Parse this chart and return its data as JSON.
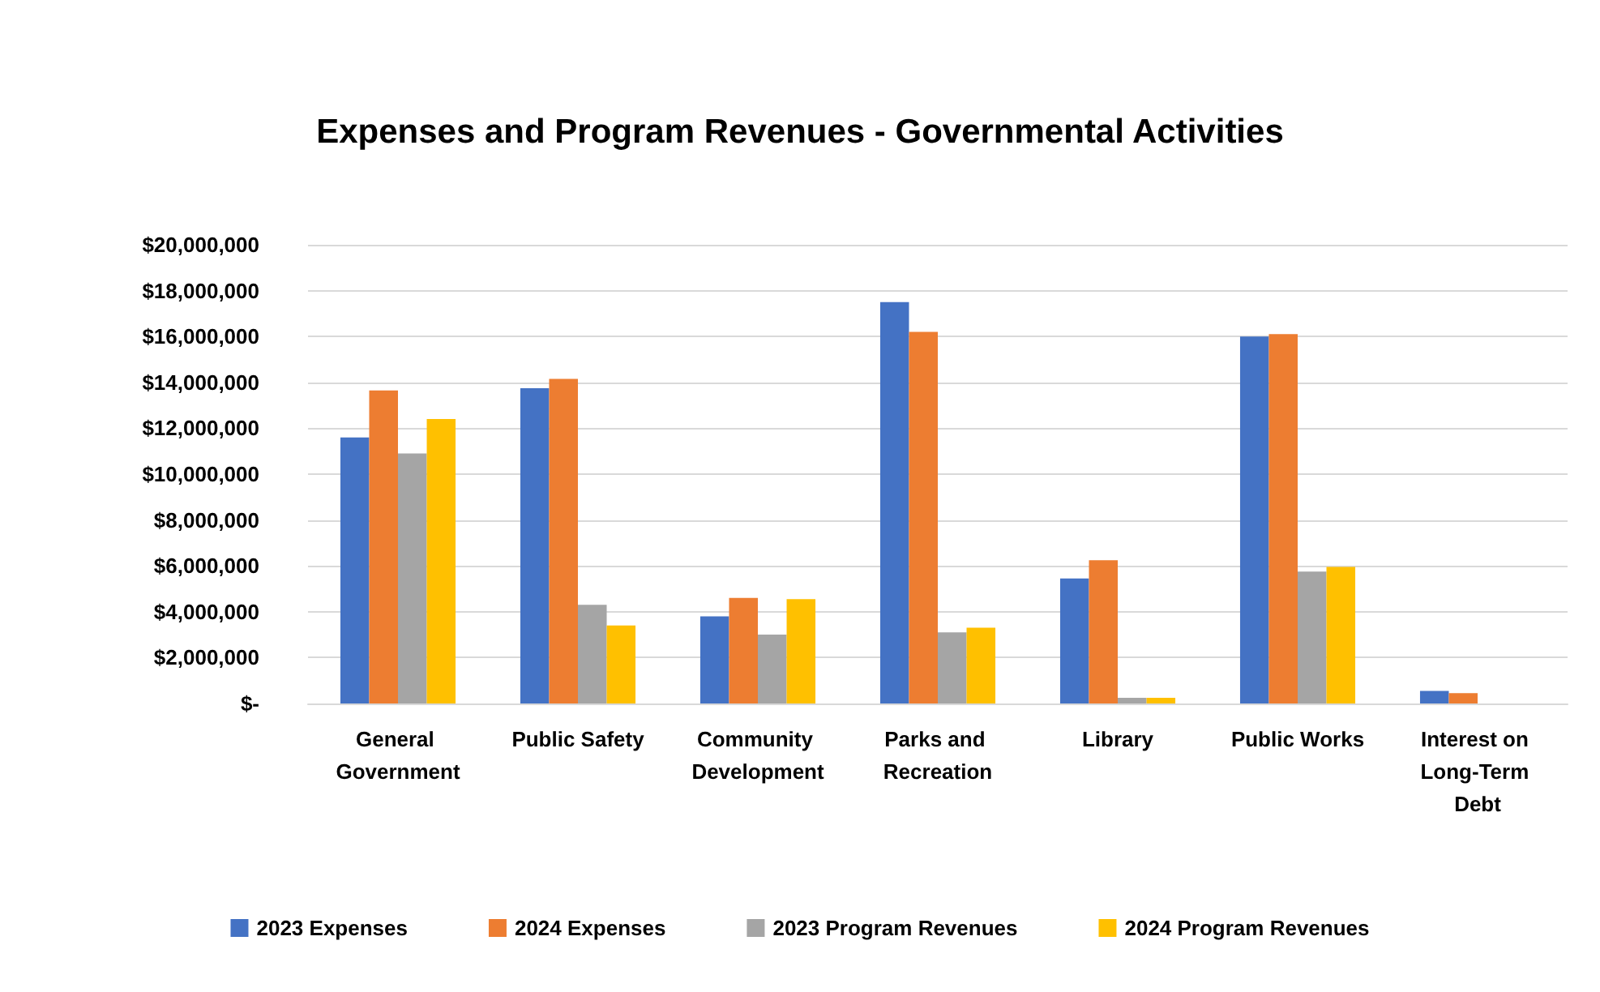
{
  "chart_data": {
    "type": "bar",
    "title": "Expenses and Program Revenues - Governmental Activities",
    "categories": [
      "General Government",
      "Public Safety",
      "Community Development",
      "Parks and Recreation",
      "Library",
      "Public Works",
      "Interest on Long-Term Debt"
    ],
    "series": [
      {
        "name": "2023 Expenses",
        "color": "#4472c4",
        "values": [
          11600000,
          13750000,
          3800000,
          17500000,
          5450000,
          16000000,
          550000
        ]
      },
      {
        "name": "2024 Expenses",
        "color": "#ed7d31",
        "values": [
          13650000,
          14150000,
          4600000,
          16200000,
          6250000,
          16100000,
          450000
        ]
      },
      {
        "name": "2023 Program Revenues",
        "color": "#a5a5a5",
        "values": [
          10900000,
          4300000,
          3000000,
          3100000,
          250000,
          5750000,
          null
        ]
      },
      {
        "name": "2024 Program Revenues",
        "color": "#ffc000",
        "values": [
          12400000,
          3400000,
          4550000,
          3300000,
          250000,
          5950000,
          null
        ]
      }
    ],
    "ylim": [
      0,
      20000000
    ],
    "yticks": [
      {
        "value": 0,
        "label": "$-"
      },
      {
        "value": 2000000,
        "label": "$2,000,000"
      },
      {
        "value": 4000000,
        "label": "$4,000,000"
      },
      {
        "value": 6000000,
        "label": "$6,000,000"
      },
      {
        "value": 8000000,
        "label": "$8,000,000"
      },
      {
        "value": 10000000,
        "label": "$10,000,000"
      },
      {
        "value": 12000000,
        "label": "$12,000,000"
      },
      {
        "value": 14000000,
        "label": "$14,000,000"
      },
      {
        "value": 16000000,
        "label": "$16,000,000"
      },
      {
        "value": 18000000,
        "label": "$18,000,000"
      },
      {
        "value": 20000000,
        "label": "$20,000,000"
      }
    ],
    "grid": "y",
    "legend": "bottom"
  }
}
